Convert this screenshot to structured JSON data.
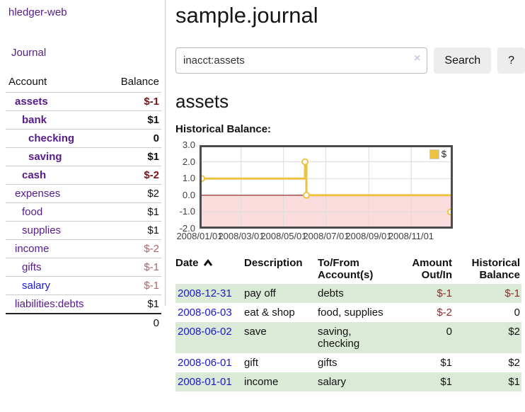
{
  "colors": {
    "accent_purple": "#551a8b",
    "link_blue": "#1a1ace",
    "negative_strong": "#7d1316",
    "negative_muted": "#aa6668",
    "negative_table": "#8c2a2c",
    "row_stripe_green": "#dbead6",
    "series_yellow": "#edc240",
    "chart_negative_fill": "#fbdcdc",
    "chart_zero_line": "#8b1e1e"
  },
  "app": {
    "brand": "hledger-web",
    "nav_journal": "Journal"
  },
  "sidebar": {
    "header": {
      "account": "Account",
      "balance": "Balance"
    },
    "accounts": [
      {
        "name": "assets",
        "level": 1,
        "in_query": true,
        "balance": "$-1",
        "balance_negative": true
      },
      {
        "name": "bank",
        "level": 2,
        "in_query": true,
        "balance": "$1"
      },
      {
        "name": "checking",
        "level": 3,
        "in_query": true,
        "balance": "0"
      },
      {
        "name": "saving",
        "level": 3,
        "in_query": true,
        "balance": "$1"
      },
      {
        "name": "cash",
        "level": 2,
        "in_query": true,
        "balance": "$-2",
        "balance_negative": true
      },
      {
        "name": "expenses",
        "level": 1,
        "balance": "$2"
      },
      {
        "name": "food",
        "level": 2,
        "balance": "$1"
      },
      {
        "name": "supplies",
        "level": 2,
        "balance": "$1"
      },
      {
        "name": "income",
        "level": 1,
        "balance": "$-2",
        "balance_negative": true,
        "muted": true
      },
      {
        "name": "gifts",
        "level": 2,
        "balance": "$-1",
        "balance_negative": true,
        "muted": true
      },
      {
        "name": "salary",
        "level": 2,
        "balance": "$-1",
        "balance_negative": true,
        "muted": true,
        "link_color": "blue"
      },
      {
        "name": "liabilities:debts",
        "level": 1,
        "balance": "$1"
      }
    ],
    "total": "0"
  },
  "main": {
    "title": "sample.journal",
    "search": {
      "value": "inacct:assets",
      "clear_icon": "×",
      "button_label": "Search",
      "help_label": "?"
    },
    "account_heading": "assets"
  },
  "chart_data": {
    "type": "line",
    "step": true,
    "title": "Historical Balance:",
    "series": [
      {
        "name": "$",
        "color": "#edc240",
        "points": [
          [
            "2008-01-01",
            1
          ],
          [
            "2008-06-01",
            2
          ],
          [
            "2008-06-03",
            0
          ],
          [
            "2008-12-31",
            -1
          ]
        ]
      }
    ],
    "x_range": [
      "2008-01-01",
      "2008-12-31"
    ],
    "ylim": [
      -2,
      3
    ],
    "y_ticks": [
      3,
      2,
      1,
      0,
      -1,
      -2
    ],
    "x_ticks": [
      "2008/01/01",
      "2008/03/01",
      "2008/05/01",
      "2008/07/01",
      "2008/09/01",
      "2008/11/01"
    ],
    "legend": {
      "label": "$",
      "position": "top-right"
    },
    "grid": true,
    "negative_region_shaded": true
  },
  "register": {
    "headers": {
      "date": "Date",
      "description": "Description",
      "accounts": "To/From Account(s)",
      "amount": "Amount Out/In",
      "balance": "Historical Balance"
    },
    "sort": {
      "column": "date",
      "direction": "asc"
    },
    "rows": [
      {
        "date": "2008-12-31",
        "description": "pay off",
        "accounts": "debts",
        "amount": "$-1",
        "balance": "$-1"
      },
      {
        "date": "2008-06-03",
        "description": "eat & shop",
        "accounts": "food, supplies",
        "amount": "$-2",
        "balance": "0"
      },
      {
        "date": "2008-06-02",
        "description": "save",
        "accounts": "saving, checking",
        "amount": "0",
        "balance": "$2"
      },
      {
        "date": "2008-06-01",
        "description": "gift",
        "accounts": "gifts",
        "amount": "$1",
        "balance": "$2"
      },
      {
        "date": "2008-01-01",
        "description": "income",
        "accounts": "salary",
        "amount": "$1",
        "balance": "$1"
      }
    ]
  }
}
